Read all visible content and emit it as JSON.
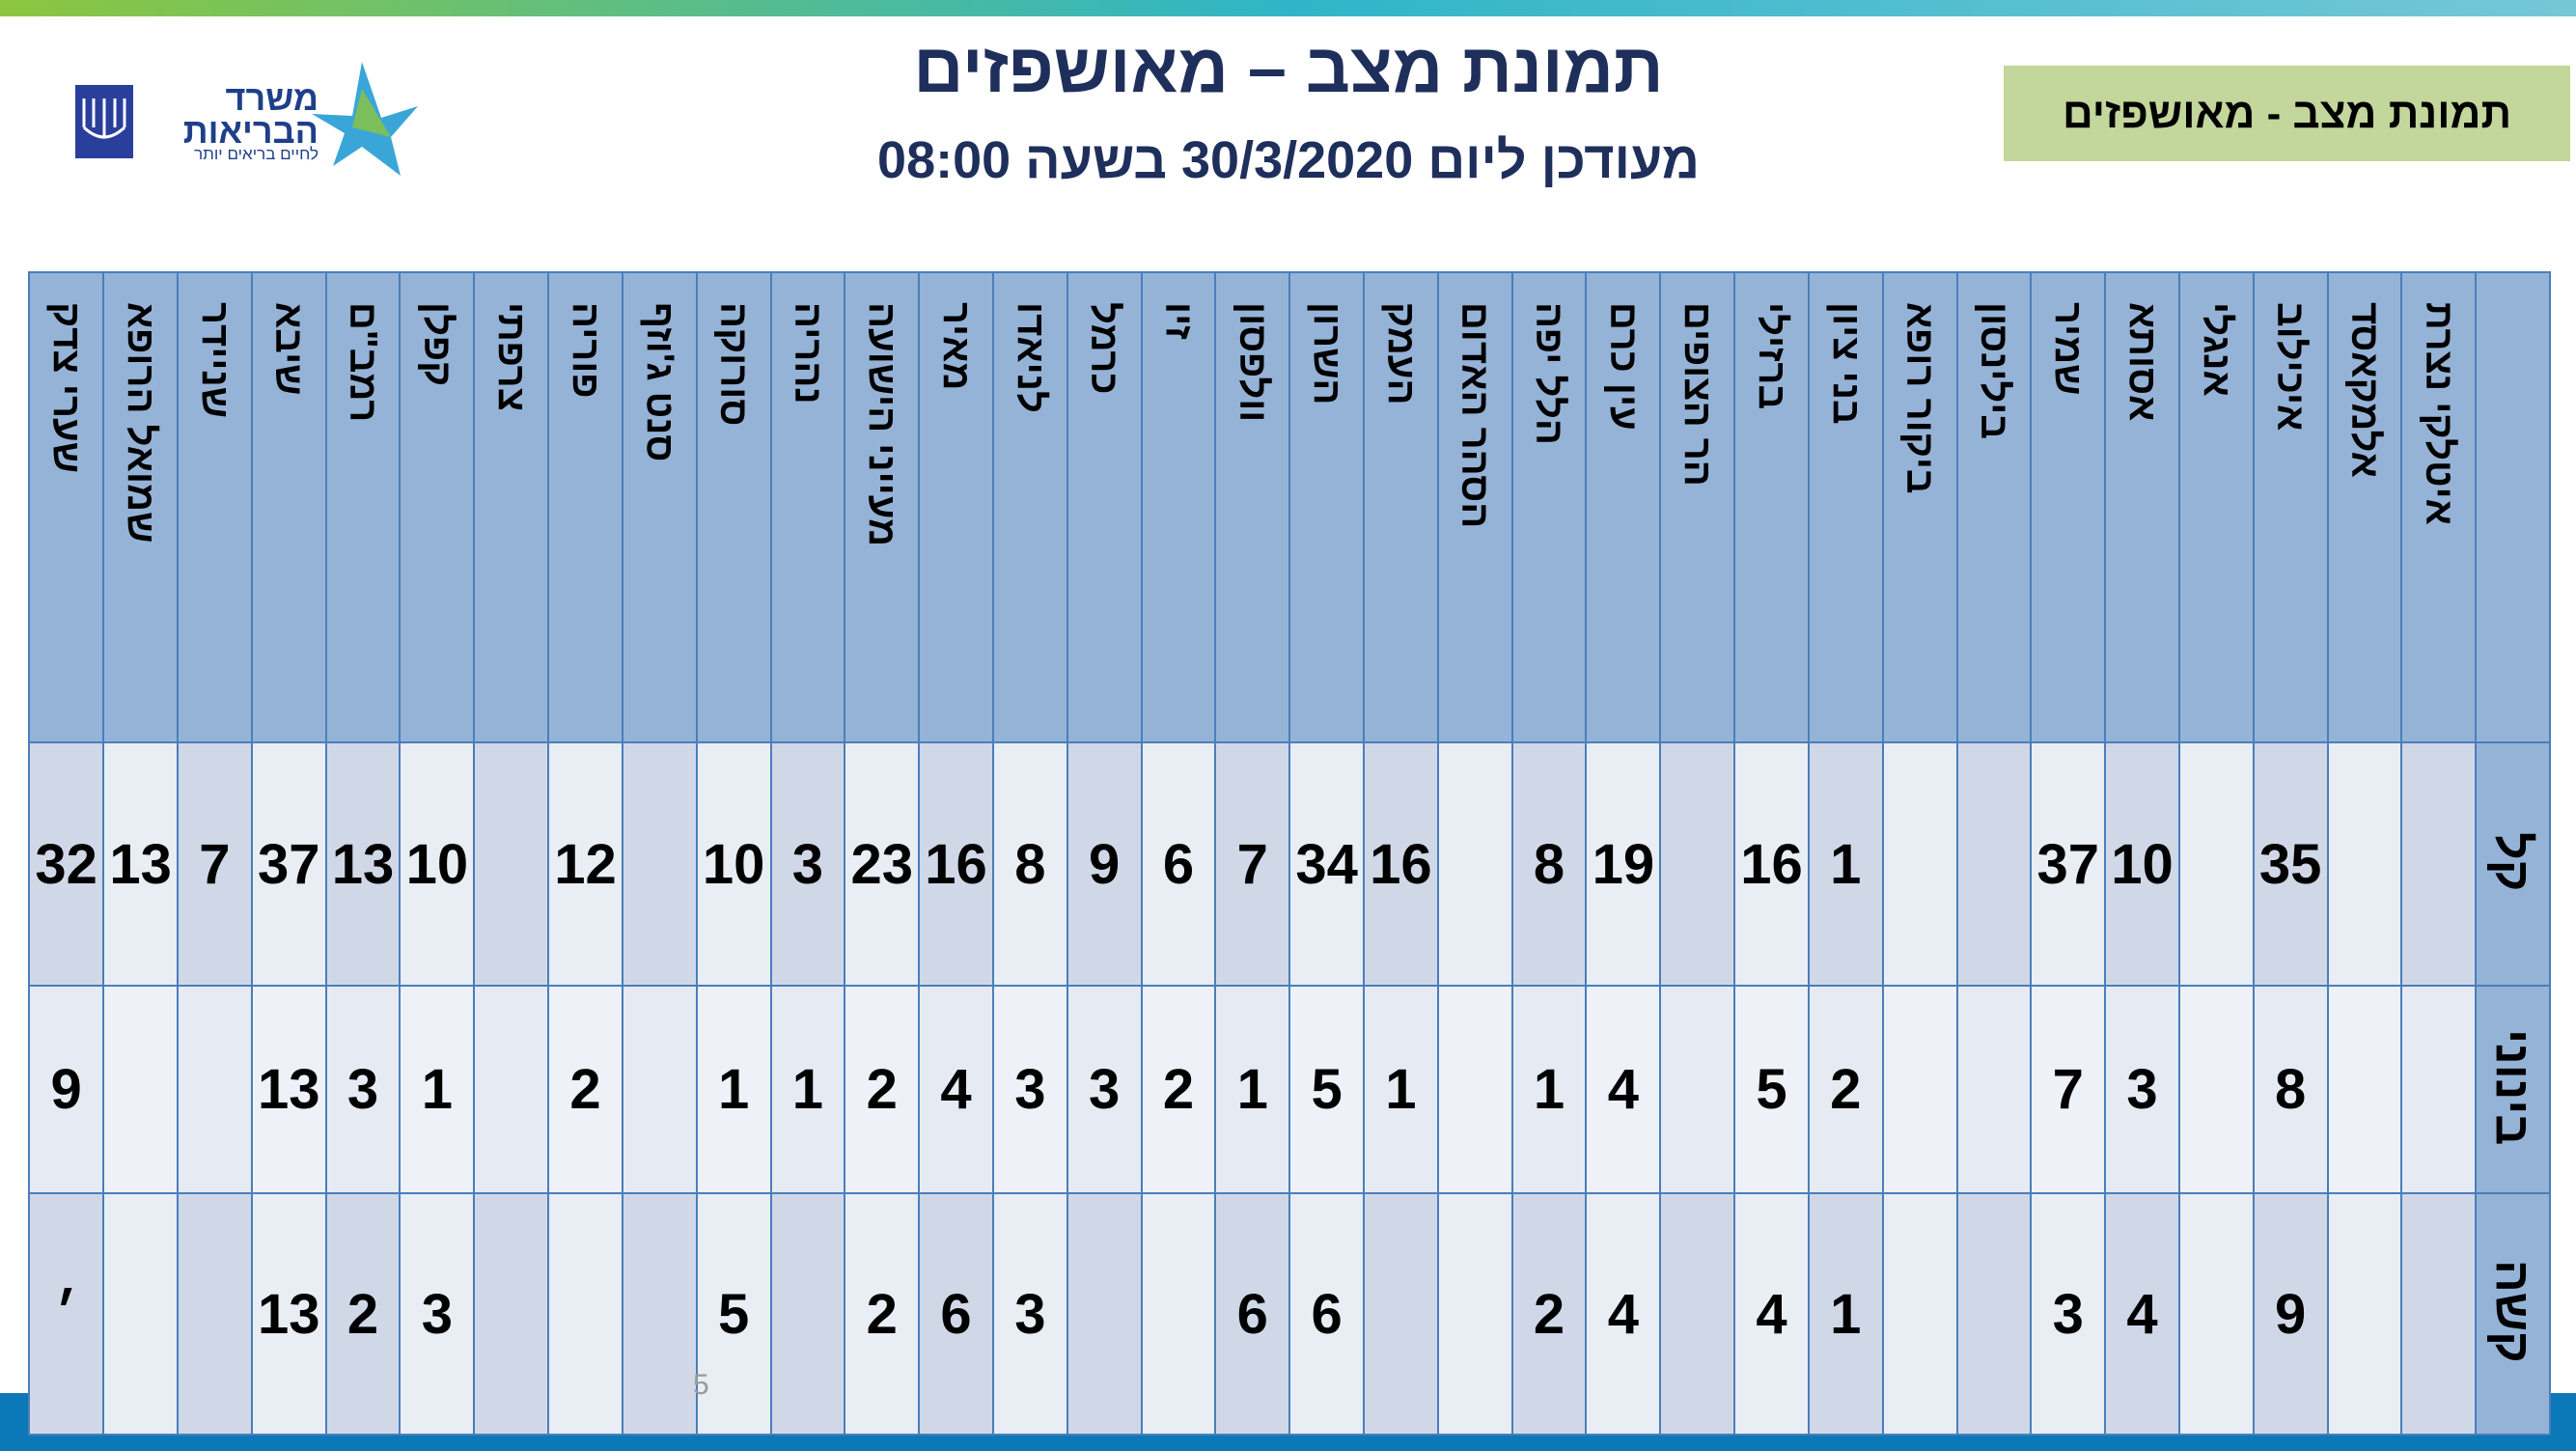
{
  "header": {
    "title": "תמונת מצב – מאושפזים",
    "subtitle": "מעודכן ליום 30/3/2020 בשעה 08:00",
    "badge": "תמונת מצב - מאושפזים",
    "logo_title": "משרד הבריאות",
    "logo_tagline": "לחיים בריאים יותר"
  },
  "table": {
    "columns": [
      "איטלקי נצרת",
      "אלמקאסד",
      "איכילוב",
      "אנגלי",
      "אסותא",
      "שמיר",
      "בילינסון",
      "ביקור רופא",
      "בני ציון",
      "ברזילי",
      "הר הצופים",
      "עין כרם",
      "הלל יפה",
      "הסהר האדום",
      "העמק",
      "השרון",
      "וולפסון",
      "זיו",
      "כרמל",
      "לניאדו",
      "מאיר",
      "מעייני הישועה",
      "נהריה",
      "סורוקה",
      "סנט ג'וזף",
      "פוריה",
      "צרפתי",
      "קפלן",
      "רמב\"ם",
      "שיבא",
      "שניידר",
      "שמואל הרופא",
      "שערי צדק"
    ],
    "rows": [
      {
        "label": "קל",
        "values": [
          null,
          null,
          35,
          null,
          10,
          37,
          null,
          null,
          1,
          16,
          null,
          19,
          8,
          null,
          16,
          34,
          7,
          6,
          9,
          8,
          16,
          23,
          3,
          10,
          null,
          12,
          null,
          10,
          13,
          37,
          7,
          13,
          32
        ]
      },
      {
        "label": "בינוני",
        "values": [
          null,
          null,
          8,
          null,
          3,
          7,
          null,
          null,
          2,
          5,
          null,
          4,
          1,
          null,
          1,
          5,
          1,
          2,
          3,
          3,
          4,
          2,
          1,
          1,
          null,
          2,
          null,
          1,
          3,
          13,
          null,
          null,
          9
        ]
      },
      {
        "label": "קשה",
        "values": [
          null,
          null,
          9,
          null,
          4,
          3,
          null,
          null,
          1,
          4,
          null,
          4,
          2,
          null,
          null,
          6,
          6,
          null,
          null,
          3,
          6,
          2,
          null,
          5,
          null,
          null,
          null,
          3,
          2,
          13,
          null,
          null,
          "׳"
        ]
      }
    ]
  },
  "page_number": "5"
}
